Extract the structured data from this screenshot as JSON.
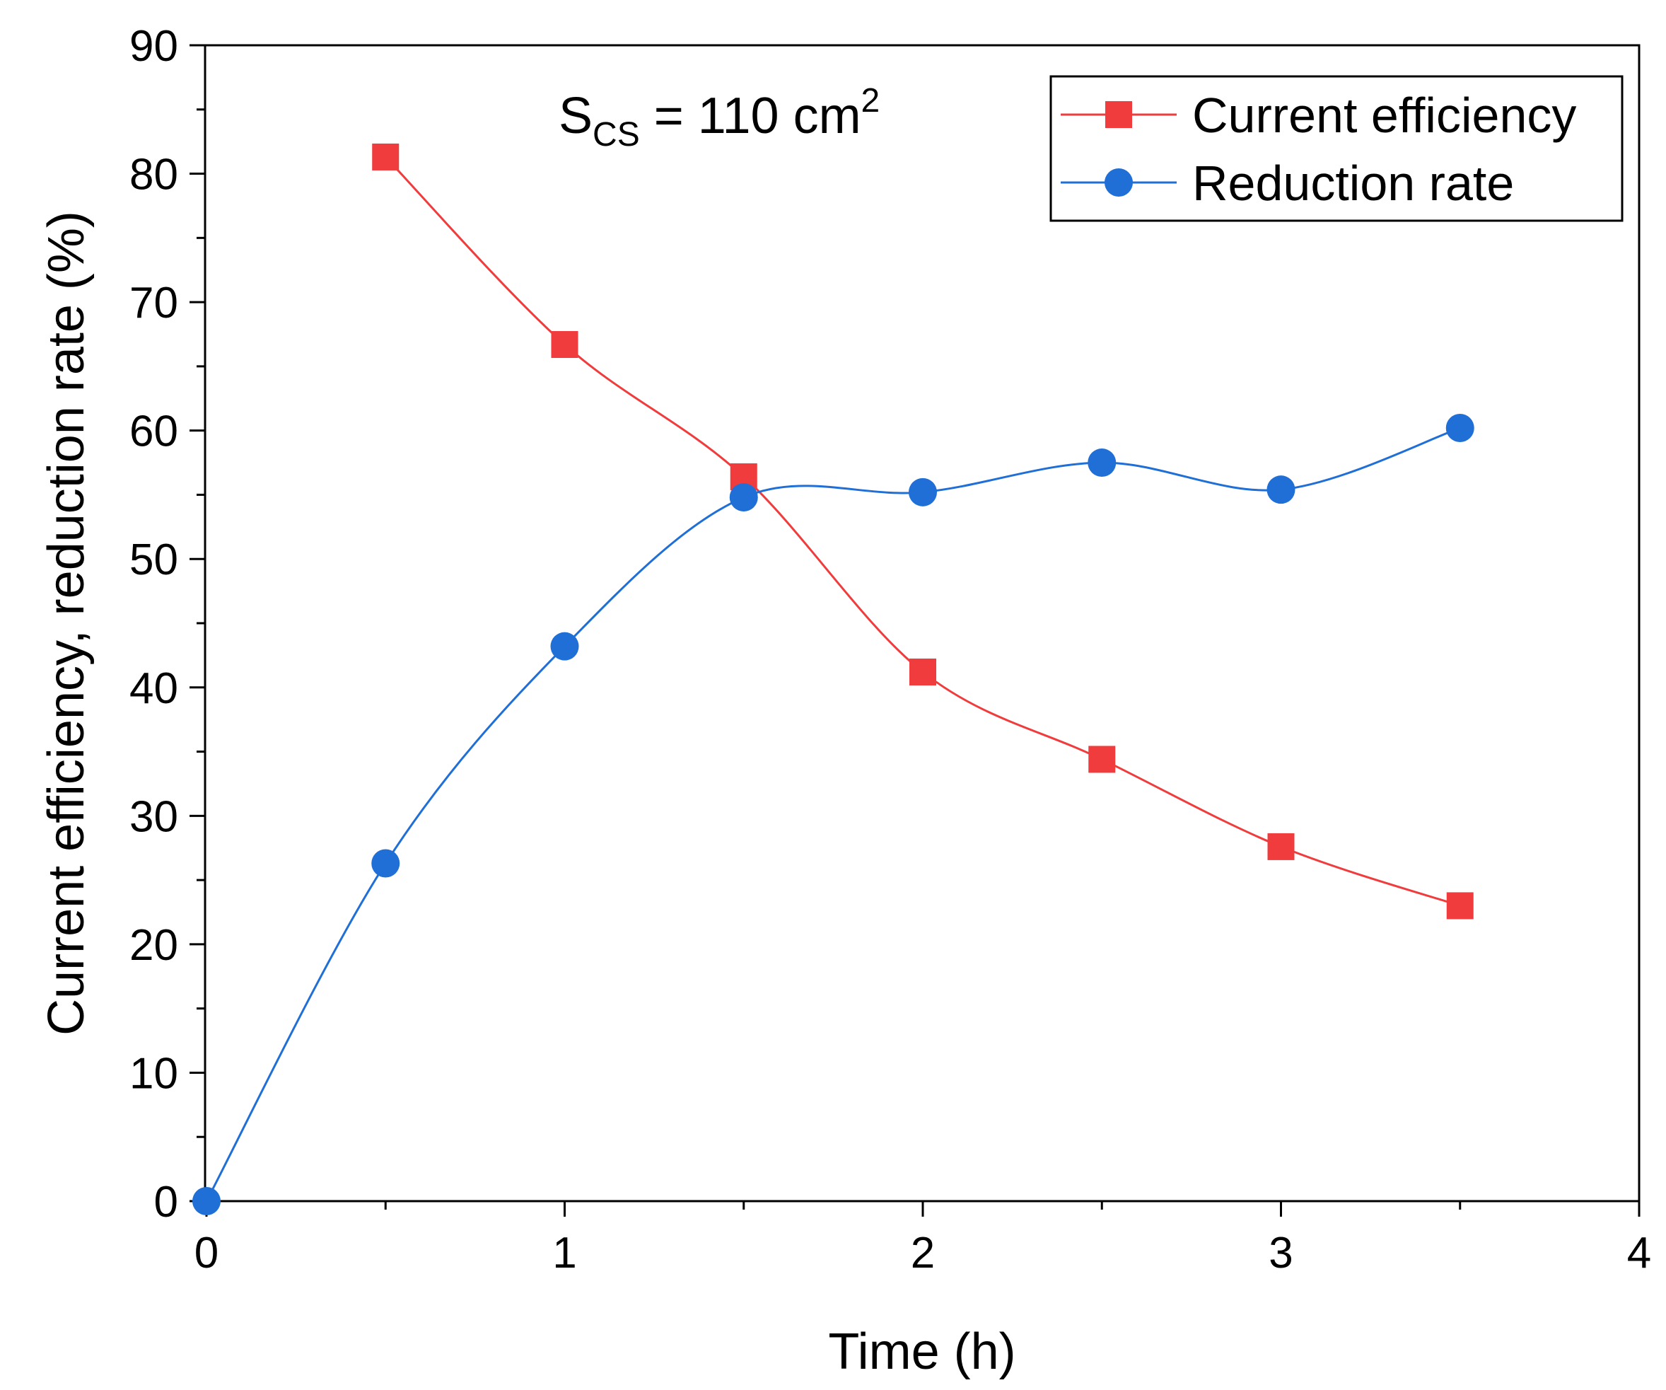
{
  "chart_data": {
    "type": "line",
    "title": "",
    "xlabel": "Time (h)",
    "ylabel": "Current efficiency, reduction rate (%)",
    "xlim": [
      0,
      4
    ],
    "ylim": [
      0,
      90
    ],
    "x_ticks": [
      "0",
      "1",
      "2",
      "3",
      "4"
    ],
    "y_ticks": [
      "0",
      "10",
      "20",
      "30",
      "40",
      "50",
      "60",
      "70",
      "80",
      "90"
    ],
    "grid": false,
    "legend_position": "top-right",
    "annotation": {
      "main": "S",
      "sub": "CS",
      "rest": " = 110 cm",
      "sup": "2"
    },
    "series": [
      {
        "name": "Current efficiency",
        "marker": "square",
        "color": "#f03c3c",
        "x": [
          0.5,
          1,
          1.5,
          2,
          2.5,
          3,
          3.5
        ],
        "values": [
          81.3,
          66.7,
          56.4,
          41.2,
          34.4,
          27.6,
          23.0
        ]
      },
      {
        "name": "Reduction rate",
        "marker": "circle",
        "color": "#1f6fd6",
        "x": [
          0,
          0.5,
          1,
          1.5,
          2,
          2.5,
          3,
          3.5
        ],
        "values": [
          0,
          26.3,
          43.2,
          54.8,
          55.2,
          57.5,
          55.4,
          60.2
        ]
      }
    ]
  }
}
